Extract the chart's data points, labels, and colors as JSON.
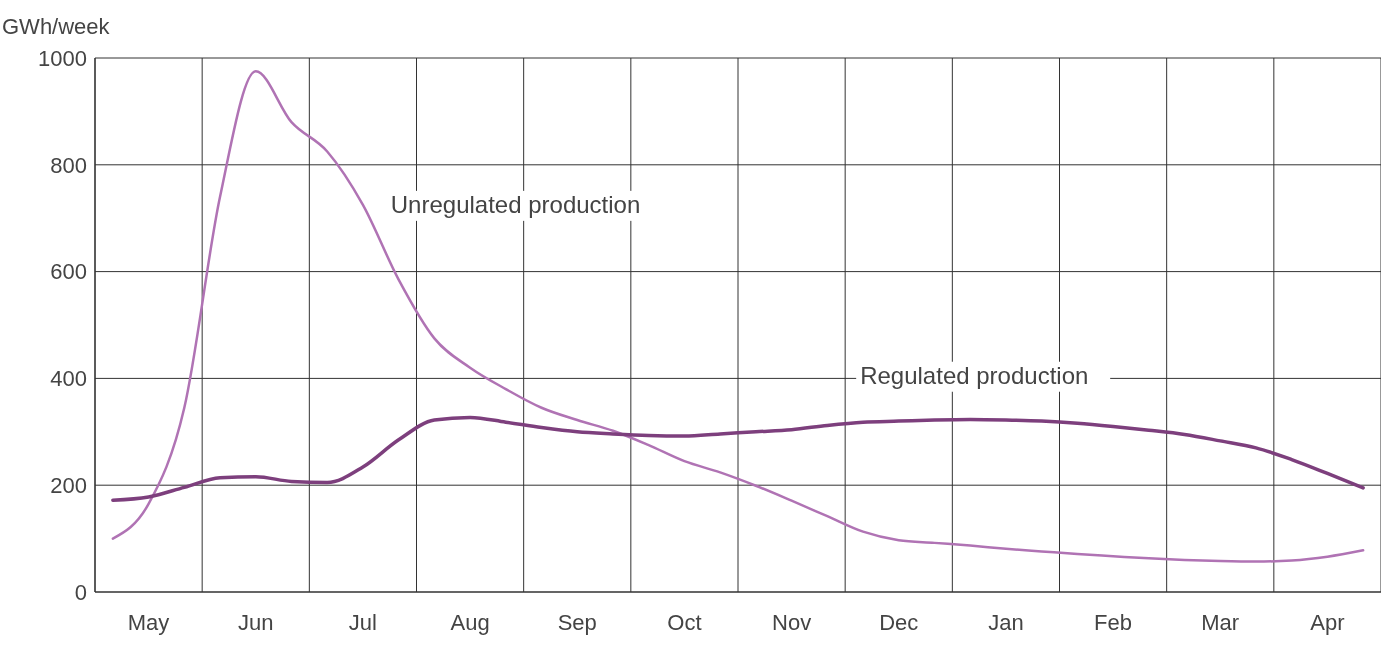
{
  "chart_data": {
    "type": "line",
    "ylabel": "GWh/week",
    "categories": [
      null,
      "May",
      null,
      null,
      "Jun",
      null,
      null,
      "Jul",
      null,
      null,
      "Aug",
      null,
      null,
      "Sep",
      null,
      null,
      "Oct",
      null,
      null,
      "Nov",
      null,
      null,
      "Dec",
      null,
      null,
      "Jan",
      null,
      null,
      "Feb",
      null,
      null,
      "Mar",
      null,
      null,
      "Apr",
      null
    ],
    "ylim": [
      0,
      1000
    ],
    "yticks": [
      0,
      200,
      400,
      600,
      800,
      1000
    ],
    "grid": true,
    "legend": false,
    "marker": "none",
    "line_style": "solid",
    "series": [
      {
        "name": "Unregulated production",
        "color": "#b073b4",
        "values": [
          100,
          165,
          345,
          740,
          975,
          880,
          825,
          725,
          585,
          475,
          420,
          380,
          345,
          322,
          302,
          275,
          245,
          224,
          199,
          171,
          142,
          113,
          97,
          92,
          87,
          81,
          76,
          71,
          67,
          63,
          60,
          58,
          57,
          59,
          66,
          78
        ]
      },
      {
        "name": "Regulated production",
        "color": "#7d3f7d",
        "values": [
          172,
          178,
          196,
          214,
          216,
          207,
          205,
          234,
          285,
          322,
          327,
          318,
          308,
          300,
          296,
          293,
          292,
          296,
          300,
          304,
          312,
          318,
          320,
          322,
          323,
          322,
          320,
          316,
          310,
          303,
          295,
          283,
          270,
          248,
          222,
          195
        ]
      }
    ]
  }
}
